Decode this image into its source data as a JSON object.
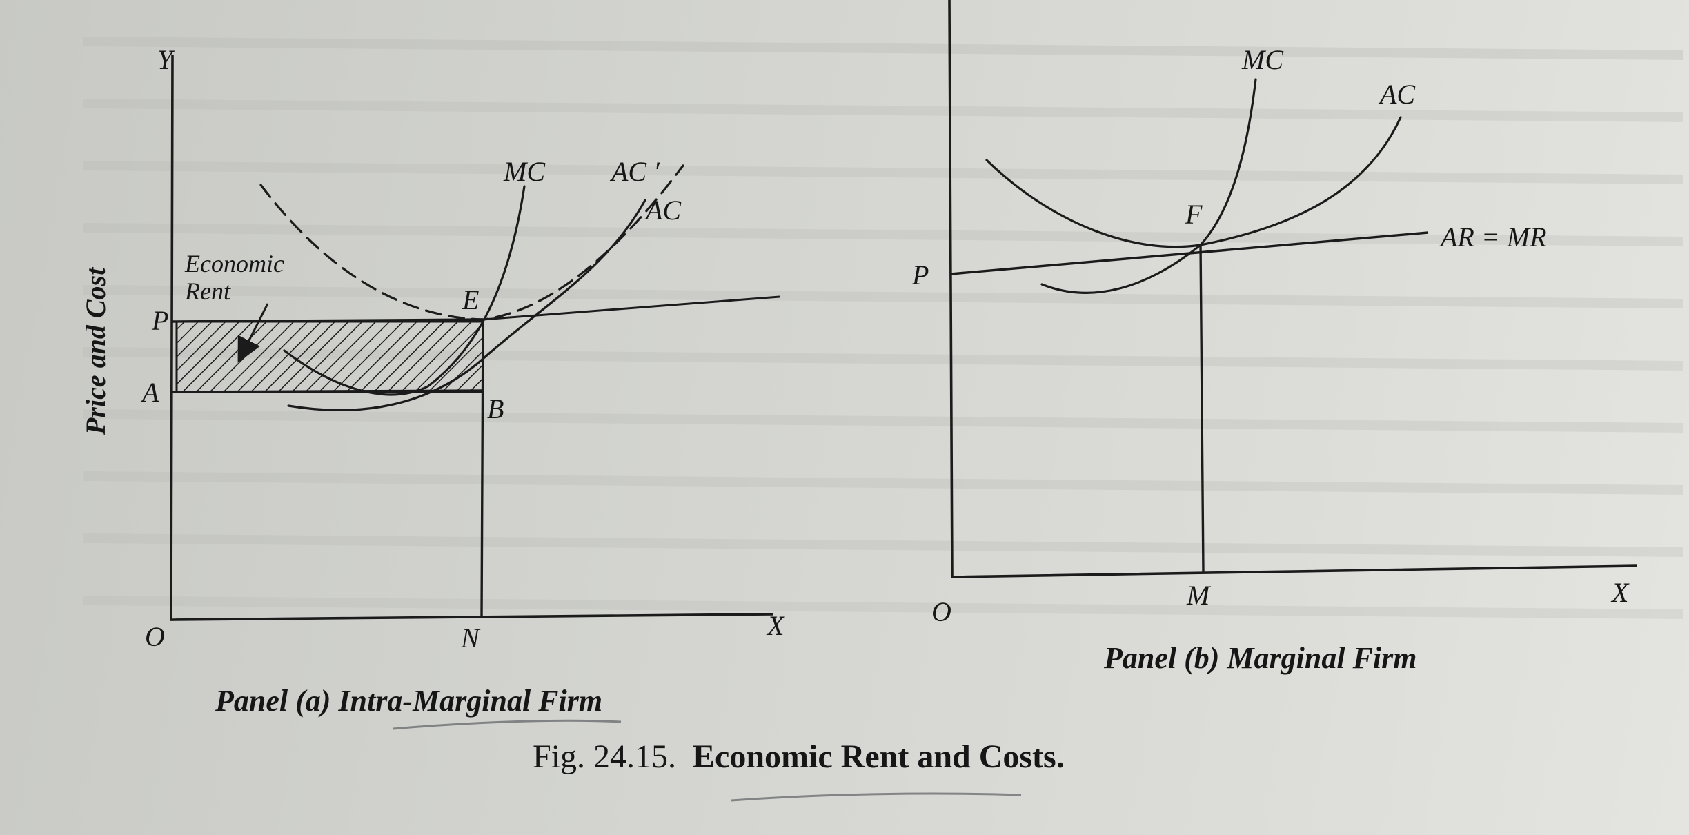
{
  "figure_caption": {
    "number": "Fig. 24.15.",
    "title": "Economic Rent and Costs."
  },
  "panel_a": {
    "caption": "Panel (a) Intra-Marginal Firm",
    "y_axis_letter": "Y",
    "x_axis_letter": "X",
    "origin": "O",
    "y_axis_title": "Price and Cost",
    "point_p": "P",
    "point_a": "A",
    "point_e": "E",
    "point_b": "B",
    "point_n": "N",
    "curve_mc": "MC",
    "curve_ac_prime": "AC ′",
    "curve_ac": "AC",
    "annotation_line1": "Economic",
    "annotation_line2": "Rent"
  },
  "panel_b": {
    "caption": "Panel (b) Marginal Firm",
    "x_axis_letter": "X",
    "origin": "O",
    "point_p": "P",
    "point_f": "F",
    "point_m": "M",
    "curve_mc": "MC",
    "curve_ac": "AC",
    "curve_ar_mr": "AR = MR"
  },
  "colors": {
    "ink": "#1b1b1b",
    "paper": "#d3d4d0"
  }
}
